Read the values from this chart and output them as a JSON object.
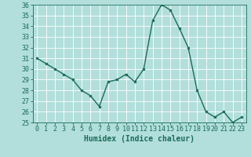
{
  "x": [
    0,
    1,
    2,
    3,
    4,
    5,
    6,
    7,
    8,
    9,
    10,
    11,
    12,
    13,
    14,
    15,
    16,
    17,
    18,
    19,
    20,
    21,
    22,
    23
  ],
  "y": [
    31,
    30.5,
    30,
    29.5,
    29,
    28,
    27.5,
    26.5,
    28.8,
    29,
    29.5,
    28.8,
    30,
    34.5,
    36,
    35.5,
    33.8,
    32,
    28,
    26,
    25.5,
    26,
    25,
    25.5
  ],
  "line_color": "#1a6b5a",
  "marker_color": "#1a6b5a",
  "bg_color": "#b2dfdb",
  "grid_color": "#ffffff",
  "xlabel": "Humidex (Indice chaleur)",
  "ylim": [
    25,
    36
  ],
  "xlim": [
    -0.5,
    23.5
  ],
  "yticks": [
    25,
    26,
    27,
    28,
    29,
    30,
    31,
    32,
    33,
    34,
    35,
    36
  ],
  "xticks": [
    0,
    1,
    2,
    3,
    4,
    5,
    6,
    7,
    8,
    9,
    10,
    11,
    12,
    13,
    14,
    15,
    16,
    17,
    18,
    19,
    20,
    21,
    22,
    23
  ],
  "tick_color": "#1a6b5a",
  "label_fontsize": 6,
  "xlabel_fontsize": 7
}
